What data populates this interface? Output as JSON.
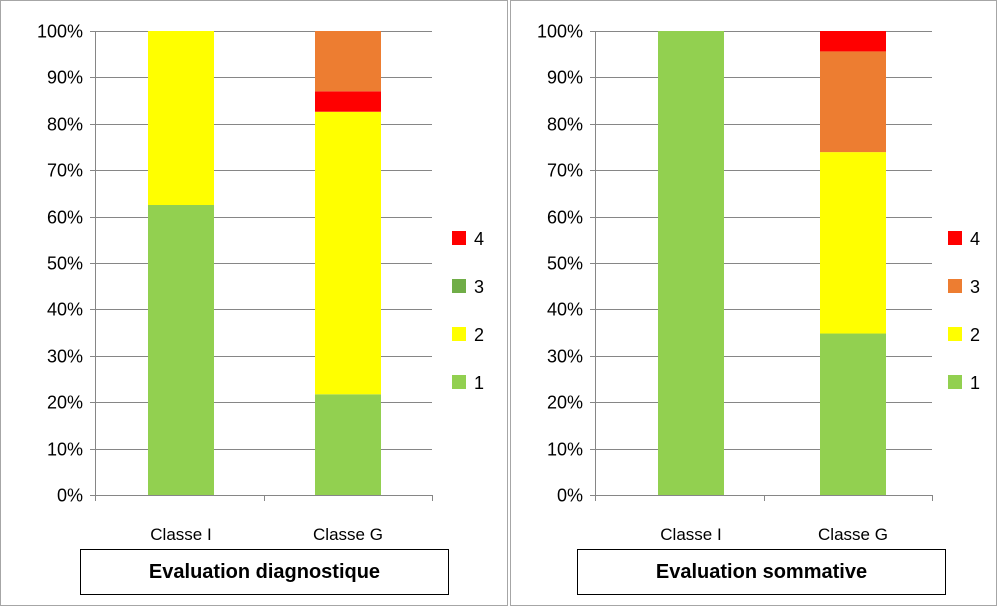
{
  "chart_data": [
    {
      "type": "bar",
      "stacked": true,
      "percent": true,
      "title": "Evaluation diagnostique",
      "categories": [
        "Classe I",
        "Classe G"
      ],
      "series": [
        {
          "name": "1",
          "color": "#92d050",
          "values": [
            62.5,
            21.7
          ]
        },
        {
          "name": "2",
          "color": "#ffff00",
          "values": [
            37.5,
            60.9
          ]
        },
        {
          "name": "3",
          "color": "#70ad47",
          "values": [
            0,
            0
          ]
        },
        {
          "name": "4",
          "color": "#ff0000",
          "values": [
            0,
            4.4
          ]
        },
        {
          "name": "",
          "color": "#ed7d31",
          "values": [
            0,
            13.0
          ]
        }
      ],
      "legend": [
        "4",
        "3",
        "2",
        "1"
      ],
      "legend_colors": [
        "#ff0000",
        "#70ad47",
        "#ffff00",
        "#92d050"
      ],
      "ylim": [
        0,
        100
      ],
      "yticks": [
        "0%",
        "10%",
        "20%",
        "30%",
        "40%",
        "50%",
        "60%",
        "70%",
        "80%",
        "90%",
        "100%"
      ],
      "grid": true,
      "legend_position": "right"
    },
    {
      "type": "bar",
      "stacked": true,
      "percent": true,
      "title": "Evaluation sommative",
      "categories": [
        "Classe I",
        "Classe G"
      ],
      "series": [
        {
          "name": "1",
          "color": "#92d050",
          "values": [
            100,
            34.8
          ]
        },
        {
          "name": "2",
          "color": "#ffff00",
          "values": [
            0,
            39.1
          ]
        },
        {
          "name": "3",
          "color": "#ed7d31",
          "values": [
            0,
            21.7
          ]
        },
        {
          "name": "4",
          "color": "#ff0000",
          "values": [
            0,
            4.4
          ]
        }
      ],
      "legend": [
        "4",
        "3",
        "2",
        "1"
      ],
      "legend_colors": [
        "#ff0000",
        "#ed7d31",
        "#ffff00",
        "#92d050"
      ],
      "ylim": [
        0,
        100
      ],
      "yticks": [
        "0%",
        "10%",
        "20%",
        "30%",
        "40%",
        "50%",
        "60%",
        "70%",
        "80%",
        "90%",
        "100%"
      ],
      "grid": true,
      "legend_position": "right"
    }
  ]
}
